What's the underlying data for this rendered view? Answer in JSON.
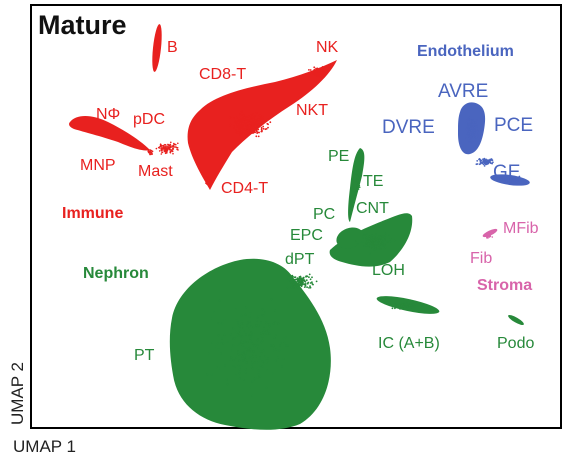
{
  "chart_data": {
    "type": "scatter",
    "title": "Mature",
    "xlabel": "UMAP 1",
    "ylabel": "UMAP 2",
    "grid": false,
    "legend": "none",
    "colors": {
      "immune": "#e8211f",
      "nephron": "#27893a",
      "endothelium": "#4a65bf",
      "stroma": "#d864aa"
    },
    "groups": [
      {
        "id": "immune",
        "name": "Immune",
        "color": "#e8211f"
      },
      {
        "id": "nephron",
        "name": "Nephron",
        "color": "#27893a"
      },
      {
        "id": "endothelium",
        "name": "Endothelium",
        "color": "#4a65bf"
      },
      {
        "id": "stroma",
        "name": "Stroma",
        "color": "#d864aa"
      }
    ],
    "clusters": [
      {
        "label": "B",
        "group": "immune"
      },
      {
        "label": "NK",
        "group": "immune"
      },
      {
        "label": "CD8-T",
        "group": "immune"
      },
      {
        "label": "NKT",
        "group": "immune"
      },
      {
        "label": "NΦ",
        "group": "immune"
      },
      {
        "label": "pDC",
        "group": "immune"
      },
      {
        "label": "MNP",
        "group": "immune"
      },
      {
        "label": "Mast",
        "group": "immune"
      },
      {
        "label": "CD4-T",
        "group": "immune"
      },
      {
        "label": "PE",
        "group": "nephron"
      },
      {
        "label": "TE",
        "group": "nephron"
      },
      {
        "label": "PC",
        "group": "nephron"
      },
      {
        "label": "CNT",
        "group": "nephron"
      },
      {
        "label": "EPC",
        "group": "nephron"
      },
      {
        "label": "dPT",
        "group": "nephron"
      },
      {
        "label": "LOH",
        "group": "nephron"
      },
      {
        "label": "PT",
        "group": "nephron"
      },
      {
        "label": "IC (A+B)",
        "group": "nephron"
      },
      {
        "label": "Podo",
        "group": "nephron"
      },
      {
        "label": "AVRE",
        "group": "endothelium"
      },
      {
        "label": "DVRE",
        "group": "endothelium"
      },
      {
        "label": "PCE",
        "group": "endothelium"
      },
      {
        "label": "GE",
        "group": "endothelium"
      },
      {
        "label": "MFib",
        "group": "stroma"
      },
      {
        "label": "Fib",
        "group": "stroma"
      }
    ]
  }
}
